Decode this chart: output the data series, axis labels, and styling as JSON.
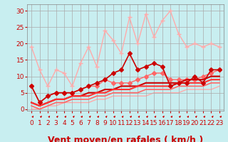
{
  "bg_color": "#c8eef0",
  "grid_color": "#aaaaaa",
  "xlabel": "Vent moyen/en rafales ( km/h )",
  "xlabel_color": "#cc0000",
  "xlabel_fontsize": 9,
  "xticks": [
    0,
    1,
    2,
    3,
    4,
    5,
    6,
    7,
    8,
    9,
    10,
    11,
    12,
    13,
    14,
    15,
    16,
    17,
    18,
    19,
    20,
    21,
    22,
    23
  ],
  "yticks": [
    0,
    5,
    10,
    15,
    20,
    25,
    30
  ],
  "ylim": [
    -0.5,
    32
  ],
  "xlim": [
    -0.5,
    23.5
  ],
  "lines": [
    {
      "x": [
        0,
        1,
        2,
        3,
        4,
        5,
        6,
        7,
        8,
        9,
        10,
        11,
        12,
        13,
        14,
        15,
        16,
        17,
        18,
        19,
        20,
        21,
        22,
        23
      ],
      "y": [
        19,
        12,
        7,
        12,
        11,
        7,
        14,
        19,
        13,
        24,
        21,
        17,
        28,
        20,
        29,
        22,
        27,
        30,
        23,
        19,
        20,
        19,
        20,
        19
      ],
      "color": "#ffaaaa",
      "lw": 1.0,
      "marker": "+",
      "ms": 4,
      "zorder": 2
    },
    {
      "x": [
        0,
        1,
        2,
        3,
        4,
        5,
        6,
        7,
        8,
        9,
        10,
        11,
        12,
        13,
        14,
        15,
        16,
        17,
        18,
        19,
        20,
        21,
        22,
        23
      ],
      "y": [
        7,
        2,
        4,
        5,
        5,
        5,
        6,
        7,
        8,
        9,
        11,
        12,
        17,
        12,
        13,
        14,
        13,
        7,
        8,
        8,
        10,
        8,
        12,
        12
      ],
      "color": "#cc0000",
      "lw": 1.2,
      "marker": "D",
      "ms": 3,
      "zorder": 3
    },
    {
      "x": [
        0,
        1,
        2,
        3,
        4,
        5,
        6,
        7,
        8,
        9,
        10,
        11,
        12,
        13,
        14,
        15,
        16,
        17,
        18,
        19,
        20,
        21,
        22,
        23
      ],
      "y": [
        7,
        2,
        4,
        5,
        5,
        5,
        6,
        7,
        7,
        9,
        8,
        8,
        8,
        9,
        10,
        11,
        11,
        9,
        9,
        9,
        9,
        10,
        11,
        12
      ],
      "color": "#ff6666",
      "lw": 1.0,
      "marker": "D",
      "ms": 3,
      "zorder": 2
    },
    {
      "x": [
        0,
        1,
        2,
        3,
        4,
        5,
        6,
        7,
        8,
        9,
        10,
        11,
        12,
        13,
        14,
        15,
        16,
        17,
        18,
        19,
        20,
        21,
        22,
        23
      ],
      "y": [
        2,
        1,
        2,
        3,
        3,
        4,
        4,
        5,
        5,
        6,
        6,
        7,
        7,
        7,
        8,
        8,
        8,
        8,
        8,
        9,
        9,
        9,
        10,
        10
      ],
      "color": "#cc0000",
      "lw": 1.5,
      "marker": "none",
      "ms": 0,
      "zorder": 2
    },
    {
      "x": [
        0,
        1,
        2,
        3,
        4,
        5,
        6,
        7,
        8,
        9,
        10,
        11,
        12,
        13,
        14,
        15,
        16,
        17,
        18,
        19,
        20,
        21,
        22,
        23
      ],
      "y": [
        2,
        1,
        2,
        3,
        3,
        4,
        4,
        4,
        5,
        5,
        6,
        6,
        6,
        7,
        7,
        7,
        7,
        7,
        8,
        8,
        8,
        8,
        9,
        9
      ],
      "color": "#ff3333",
      "lw": 1.5,
      "marker": "none",
      "ms": 0,
      "zorder": 2
    },
    {
      "x": [
        0,
        1,
        2,
        3,
        4,
        5,
        6,
        7,
        8,
        9,
        10,
        11,
        12,
        13,
        14,
        15,
        16,
        17,
        18,
        19,
        20,
        21,
        22,
        23
      ],
      "y": [
        1,
        0,
        1,
        2,
        2,
        3,
        3,
        3,
        4,
        4,
        5,
        5,
        5,
        5,
        6,
        6,
        6,
        6,
        7,
        7,
        7,
        7,
        8,
        8
      ],
      "color": "#ff6666",
      "lw": 1.2,
      "marker": "none",
      "ms": 0,
      "zorder": 2
    },
    {
      "x": [
        0,
        1,
        2,
        3,
        4,
        5,
        6,
        7,
        8,
        9,
        10,
        11,
        12,
        13,
        14,
        15,
        16,
        17,
        18,
        19,
        20,
        21,
        22,
        23
      ],
      "y": [
        0,
        0,
        1,
        1,
        2,
        2,
        2,
        2,
        3,
        3,
        4,
        4,
        4,
        4,
        4,
        5,
        5,
        5,
        5,
        6,
        6,
        6,
        6,
        7
      ],
      "color": "#ffaaaa",
      "lw": 1.0,
      "marker": "none",
      "ms": 0,
      "zorder": 1
    }
  ],
  "arrow_color": "#cc0000",
  "tick_color": "#cc0000",
  "tick_fontsize": 6.5
}
